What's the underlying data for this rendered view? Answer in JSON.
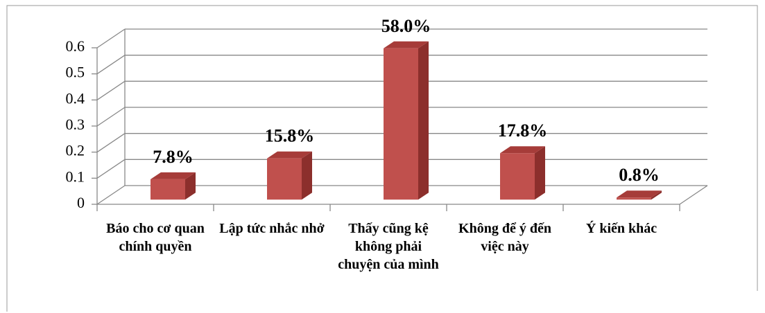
{
  "chart_data": {
    "type": "bar3d",
    "categories": [
      "Báo cho cơ quan chính quyền",
      "Lập tức nhắc nhở",
      "Thấy cũng kệ không phải chuyện của mình",
      "Không để ý đến việc này",
      "Ý kiến khác"
    ],
    "values": [
      0.078,
      0.158,
      0.58,
      0.178,
      0.008
    ],
    "value_labels": [
      "7.8%",
      "15.8%",
      "58.0%",
      "17.8%",
      "0.8%"
    ],
    "color": "#c0504d",
    "ylim": [
      0,
      0.6
    ],
    "yticks": [
      0,
      0.1,
      0.2,
      0.3,
      0.4,
      0.5,
      0.6
    ],
    "grid": true
  }
}
